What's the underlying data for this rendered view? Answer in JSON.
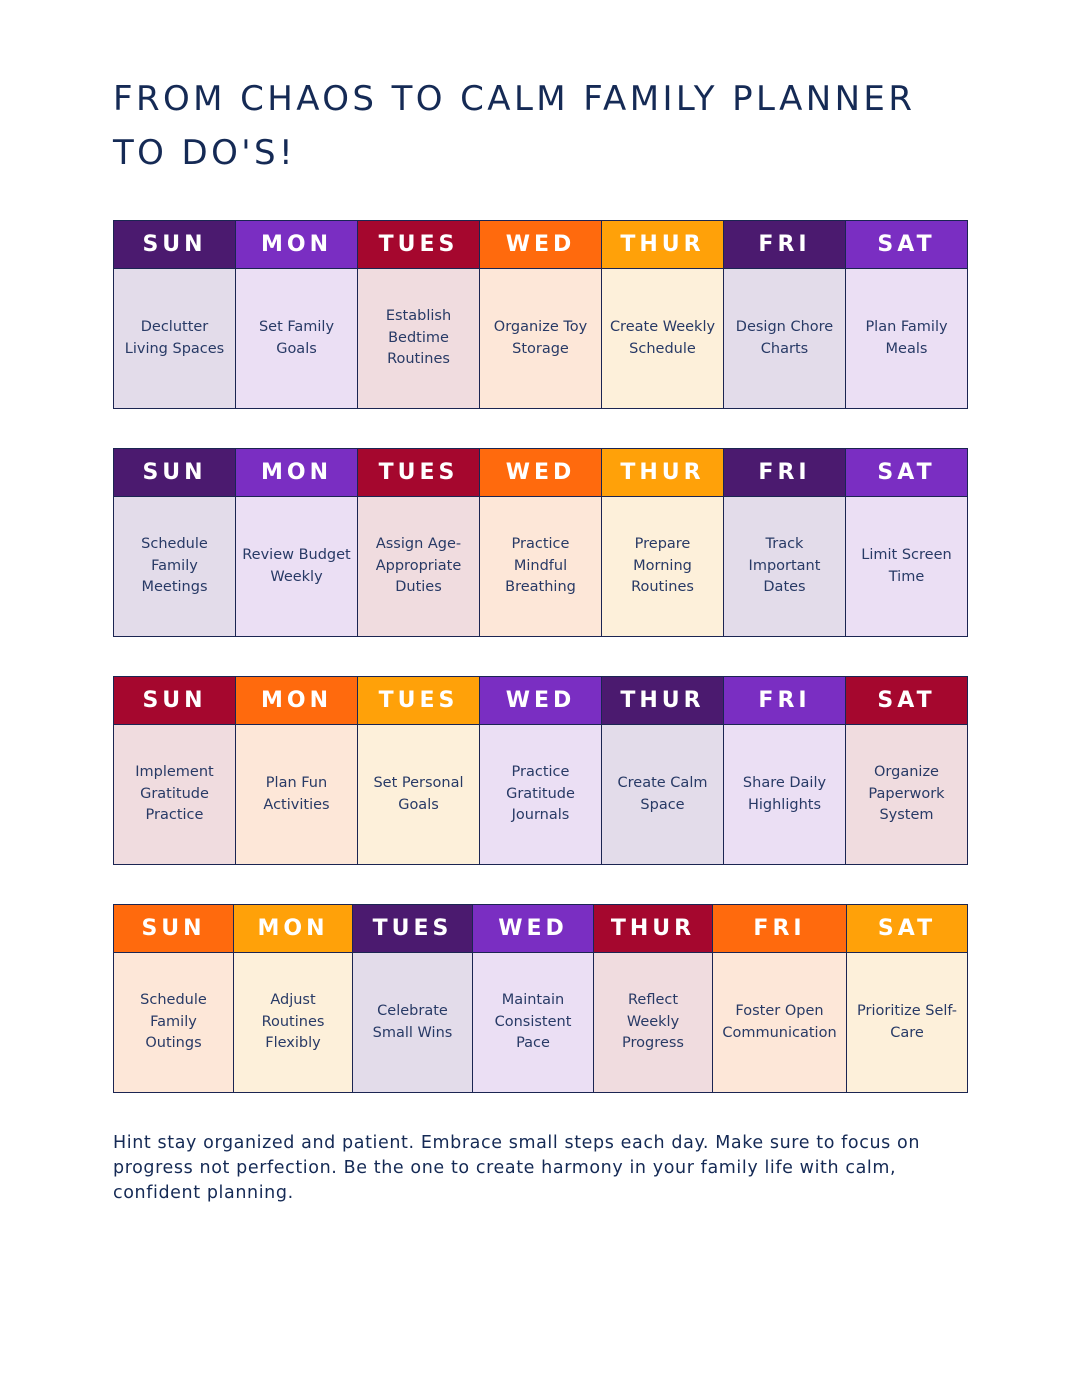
{
  "title_line1": "FROM CHAOS TO CALM FAMILY PLANNER",
  "title_line2": "TO DO'S!",
  "weeks": [
    {
      "days": [
        {
          "label": "SUN",
          "task": "Declutter Living Spaces",
          "header_color": "#4b1a6f",
          "cell_color": "#e3dcea"
        },
        {
          "label": "MON",
          "task": "Set Family Goals",
          "header_color": "#7a2ec2",
          "cell_color": "#ebdff4"
        },
        {
          "label": "TUES",
          "task": "Establish Bedtime Routines",
          "header_color": "#a5072e",
          "cell_color": "#f0dcdf"
        },
        {
          "label": "WED",
          "task": "Organize Toy Storage",
          "header_color": "#ff6a0d",
          "cell_color": "#fde7d8"
        },
        {
          "label": "THUR",
          "task": "Create Weekly Schedule",
          "header_color": "#ffa109",
          "cell_color": "#fdf0da"
        },
        {
          "label": "FRI",
          "task": "Design Chore Charts",
          "header_color": "#4b1a6f",
          "cell_color": "#e3dcea"
        },
        {
          "label": "SAT",
          "task": "Plan Family Meals",
          "header_color": "#7a2ec2",
          "cell_color": "#ebdff4"
        }
      ]
    },
    {
      "days": [
        {
          "label": "SUN",
          "task": "Schedule Family Meetings",
          "header_color": "#4b1a6f",
          "cell_color": "#e3dcea"
        },
        {
          "label": "MON",
          "task": "Review Budget Weekly",
          "header_color": "#7a2ec2",
          "cell_color": "#ebdff4"
        },
        {
          "label": "TUES",
          "task": "Assign Age-Appropriate Duties",
          "header_color": "#a5072e",
          "cell_color": "#f0dcdf"
        },
        {
          "label": "WED",
          "task": "Practice Mindful Breathing",
          "header_color": "#ff6a0d",
          "cell_color": "#fde7d8"
        },
        {
          "label": "THUR",
          "task": "Prepare Morning Routines",
          "header_color": "#ffa109",
          "cell_color": "#fdf0da"
        },
        {
          "label": "FRI",
          "task": "Track Important Dates",
          "header_color": "#4b1a6f",
          "cell_color": "#e3dcea"
        },
        {
          "label": "SAT",
          "task": "Limit Screen Time",
          "header_color": "#7a2ec2",
          "cell_color": "#ebdff4"
        }
      ]
    },
    {
      "days": [
        {
          "label": "SUN",
          "task": "Implement Gratitude Practice",
          "header_color": "#a5072e",
          "cell_color": "#f0dcdf"
        },
        {
          "label": "MON",
          "task": "Plan Fun Activities",
          "header_color": "#ff6a0d",
          "cell_color": "#fde7d8"
        },
        {
          "label": "TUES",
          "task": "Set Personal Goals",
          "header_color": "#ffa109",
          "cell_color": "#fdf0da"
        },
        {
          "label": "WED",
          "task": "Practice Gratitude Journals",
          "header_color": "#7a2ec2",
          "cell_color": "#ebdff4"
        },
        {
          "label": "THUR",
          "task": "Create Calm Space",
          "header_color": "#4b1a6f",
          "cell_color": "#e3dcea"
        },
        {
          "label": "FRI",
          "task": "Share Daily Highlights",
          "header_color": "#7a2ec2",
          "cell_color": "#ebdff4"
        },
        {
          "label": "SAT",
          "task": "Organize Paperwork System",
          "header_color": "#a5072e",
          "cell_color": "#f0dcdf"
        }
      ]
    },
    {
      "days": [
        {
          "label": "SUN",
          "task": "Schedule Family Outings",
          "header_color": "#ff6a0d",
          "cell_color": "#fde7d8"
        },
        {
          "label": "MON",
          "task": "Adjust Routines Flexibly",
          "header_color": "#ffa109",
          "cell_color": "#fdf0da"
        },
        {
          "label": "TUES",
          "task": "Celebrate Small Wins",
          "header_color": "#4b1a6f",
          "cell_color": "#e3dcea"
        },
        {
          "label": "WED",
          "task": "Maintain Consistent Pace",
          "header_color": "#7a2ec2",
          "cell_color": "#ebdff4"
        },
        {
          "label": "THUR",
          "task": "Reflect Weekly Progress",
          "header_color": "#a5072e",
          "cell_color": "#f0dcdf"
        },
        {
          "label": "FRI",
          "task": "Foster Open Communication",
          "header_color": "#ff6a0d",
          "cell_color": "#fde7d8"
        },
        {
          "label": "SAT",
          "task": "Prioritize Self-Care",
          "header_color": "#ffa109",
          "cell_color": "#fdf0da"
        }
      ]
    }
  ],
  "hint": "Hint stay organized and patient. Embrace small steps each day. Make sure to focus on progress not perfection. Be the one to create harmony in your family life with calm, confident planning."
}
